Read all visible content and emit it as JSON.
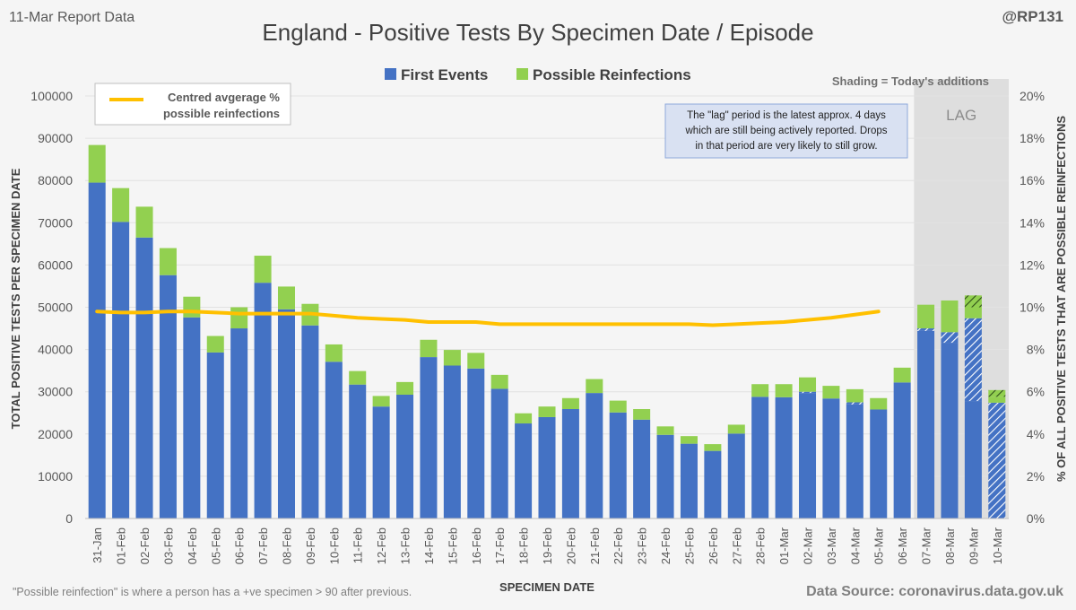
{
  "header": {
    "report_label": "11-Mar Report Data",
    "handle": "@RP131",
    "shading_note": "Shading = Today's additions",
    "footnote": "\"Possible reinfection\" is where a person has a +ve specimen > 90 after previous.",
    "source": "Data Source: coronavirus.data.gov.uk"
  },
  "legend_box": {
    "line1": "Centred avgerage %",
    "line2": "possible reinfections"
  },
  "lag_note": {
    "label": "LAG",
    "line1": "The \"lag\" period is the latest approx. 4 days",
    "line2": "which are still being actively reported.  Drops",
    "line3": "in that period are very likely to still grow."
  },
  "chart_data": {
    "type": "bar",
    "stacked": true,
    "title": "England - Positive Tests By Specimen Date / Episode",
    "xlabel": "SPECIMEN DATE",
    "ylabel": "TOTAL POSITIVE TESTS PER SPECIMEN DATE",
    "y2label": "% OF ALL POSITIVE TESTS THAT ARE POSSIBLE REINFECTIONS",
    "ylim": [
      0,
      100000
    ],
    "y2lim": [
      0,
      20
    ],
    "yticks": [
      "0",
      "10000",
      "20000",
      "30000",
      "40000",
      "50000",
      "60000",
      "70000",
      "80000",
      "90000",
      "100000"
    ],
    "y2ticks": [
      "0%",
      "2%",
      "4%",
      "6%",
      "8%",
      "10%",
      "12%",
      "14%",
      "16%",
      "18%",
      "20%"
    ],
    "categories": [
      "31-Jan",
      "01-Feb",
      "02-Feb",
      "03-Feb",
      "04-Feb",
      "05-Feb",
      "06-Feb",
      "07-Feb",
      "08-Feb",
      "09-Feb",
      "10-Feb",
      "11-Feb",
      "12-Feb",
      "13-Feb",
      "14-Feb",
      "15-Feb",
      "16-Feb",
      "17-Feb",
      "18-Feb",
      "19-Feb",
      "20-Feb",
      "21-Feb",
      "22-Feb",
      "23-Feb",
      "24-Feb",
      "25-Feb",
      "26-Feb",
      "27-Feb",
      "28-Feb",
      "01-Mar",
      "02-Mar",
      "03-Mar",
      "04-Mar",
      "05-Mar",
      "06-Mar",
      "07-Mar",
      "08-Mar",
      "09-Mar",
      "10-Mar"
    ],
    "series": [
      {
        "name": "First Events",
        "color": "#4472c4",
        "values": [
          79500,
          70200,
          66500,
          57600,
          47600,
          39300,
          45000,
          55800,
          49500,
          45700,
          37100,
          31700,
          26500,
          29300,
          38200,
          36200,
          35500,
          30700,
          22500,
          24000,
          25900,
          29700,
          25100,
          23400,
          19800,
          17700,
          16000,
          20100,
          28800,
          28700,
          30000,
          28400,
          27500,
          25800,
          32200,
          45000,
          44100,
          47400,
          27400
        ]
      },
      {
        "name": "Possible Reinfections",
        "color": "#92d050",
        "values": [
          8900,
          8000,
          7300,
          6400,
          4900,
          3900,
          5000,
          6400,
          5400,
          5100,
          4100,
          3200,
          2500,
          3000,
          4100,
          3700,
          3700,
          3300,
          2400,
          2500,
          2600,
          3300,
          2800,
          2500,
          2000,
          1800,
          1600,
          2100,
          3000,
          3100,
          3400,
          3000,
          3100,
          2700,
          3500,
          5600,
          7500,
          5400,
          3000
        ]
      }
    ],
    "today_additions": {
      "first_events": [
        0,
        0,
        0,
        0,
        0,
        0,
        0,
        0,
        0,
        0,
        0,
        0,
        0,
        0,
        0,
        0,
        0,
        0,
        0,
        0,
        0,
        0,
        0,
        0,
        0,
        0,
        0,
        0,
        0,
        0,
        300,
        0,
        500,
        0,
        0,
        600,
        2500,
        19600,
        27400
      ],
      "reinfections": [
        0,
        0,
        0,
        0,
        0,
        0,
        0,
        0,
        0,
        0,
        0,
        0,
        0,
        0,
        0,
        0,
        0,
        0,
        0,
        0,
        0,
        0,
        0,
        0,
        0,
        0,
        0,
        0,
        0,
        0,
        0,
        0,
        0,
        0,
        0,
        0,
        0,
        2800,
        1600
      ]
    },
    "line": {
      "name": "Centred avgerage % possible reinfections",
      "color": "#ffc000",
      "axis": "right",
      "values": [
        9.8,
        9.75,
        9.75,
        9.8,
        9.8,
        9.75,
        9.7,
        9.7,
        9.7,
        9.7,
        9.6,
        9.5,
        9.45,
        9.4,
        9.3,
        9.3,
        9.3,
        9.2,
        9.2,
        9.2,
        9.2,
        9.2,
        9.2,
        9.2,
        9.2,
        9.2,
        9.15,
        9.2,
        9.25,
        9.3,
        9.4,
        9.5,
        9.65,
        9.8,
        null,
        null,
        null,
        null,
        null
      ]
    },
    "lag_start_category": "07-Mar",
    "legend": [
      "First Events",
      "Possible Reinfections"
    ]
  }
}
